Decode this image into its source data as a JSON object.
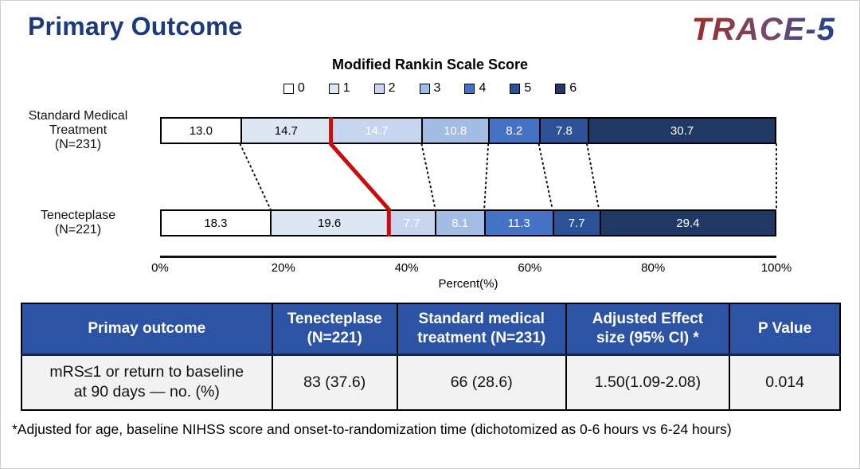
{
  "page": {
    "title": "Primary Outcome",
    "logo_text": "TRACE-5",
    "footnote": "*Adjusted for age, baseline NIHSS score and onset-to-randomization time (dichotomized as 0-6 hours vs 6-24 hours)",
    "colors": {
      "title_blue": "#1b3a80",
      "logo_gradient_start": "#9d2c26",
      "logo_gradient_end": "#24418c",
      "table_header_bg": "#2d53a5",
      "table_row_bg": "#f2f2f2",
      "threshold_red": "#cc0c0c"
    }
  },
  "chart_data": {
    "type": "bar",
    "variant": "horizontal-stacked",
    "title": "Modified Rankin Scale Score",
    "xlabel": "Percent(%)",
    "xlim": [
      0,
      100
    ],
    "x_ticks": [
      "0%",
      "20%",
      "40%",
      "60%",
      "80%",
      "100%"
    ],
    "legend_position": "top",
    "mrs_categories": [
      "0",
      "1",
      "2",
      "3",
      "4",
      "5",
      "6"
    ],
    "mrs_colors": [
      "#ffffff",
      "#dde6f3",
      "#c8d5ee",
      "#a2bce4",
      "#4472c4",
      "#2c5197",
      "#203864"
    ],
    "series": [
      {
        "name": "Standard Medical Treatment (N=231)",
        "label_lines": [
          "Standard Medical",
          "Treatment",
          "(N=231)"
        ],
        "values": [
          13.0,
          14.7,
          14.7,
          10.8,
          8.2,
          7.8,
          30.7
        ]
      },
      {
        "name": "Tenecteplase (N=221)",
        "label_lines": [
          "Tenecteplase",
          "(N=221)"
        ],
        "values": [
          18.3,
          19.6,
          7.7,
          8.1,
          11.3,
          7.7,
          29.4
        ]
      }
    ],
    "connectors": {
      "dotted_after_indices": [
        0,
        2,
        3,
        4,
        5
      ],
      "end_line_at_100": true,
      "red_threshold_after_index": 1
    }
  },
  "table": {
    "headers": [
      "Primay outcome",
      "Tenecteplase\n(N=221)",
      "Standard medical\ntreatment (N=231)",
      "Adjusted Effect\nsize (95% CI) *",
      "P Value"
    ],
    "rows": [
      [
        "mRS≤1 or  return to baseline\nat 90 days — no. (%)",
        "83 (37.6)",
        "66 (28.6)",
        "1.50(1.09-2.08)",
        "0.014"
      ]
    ]
  }
}
